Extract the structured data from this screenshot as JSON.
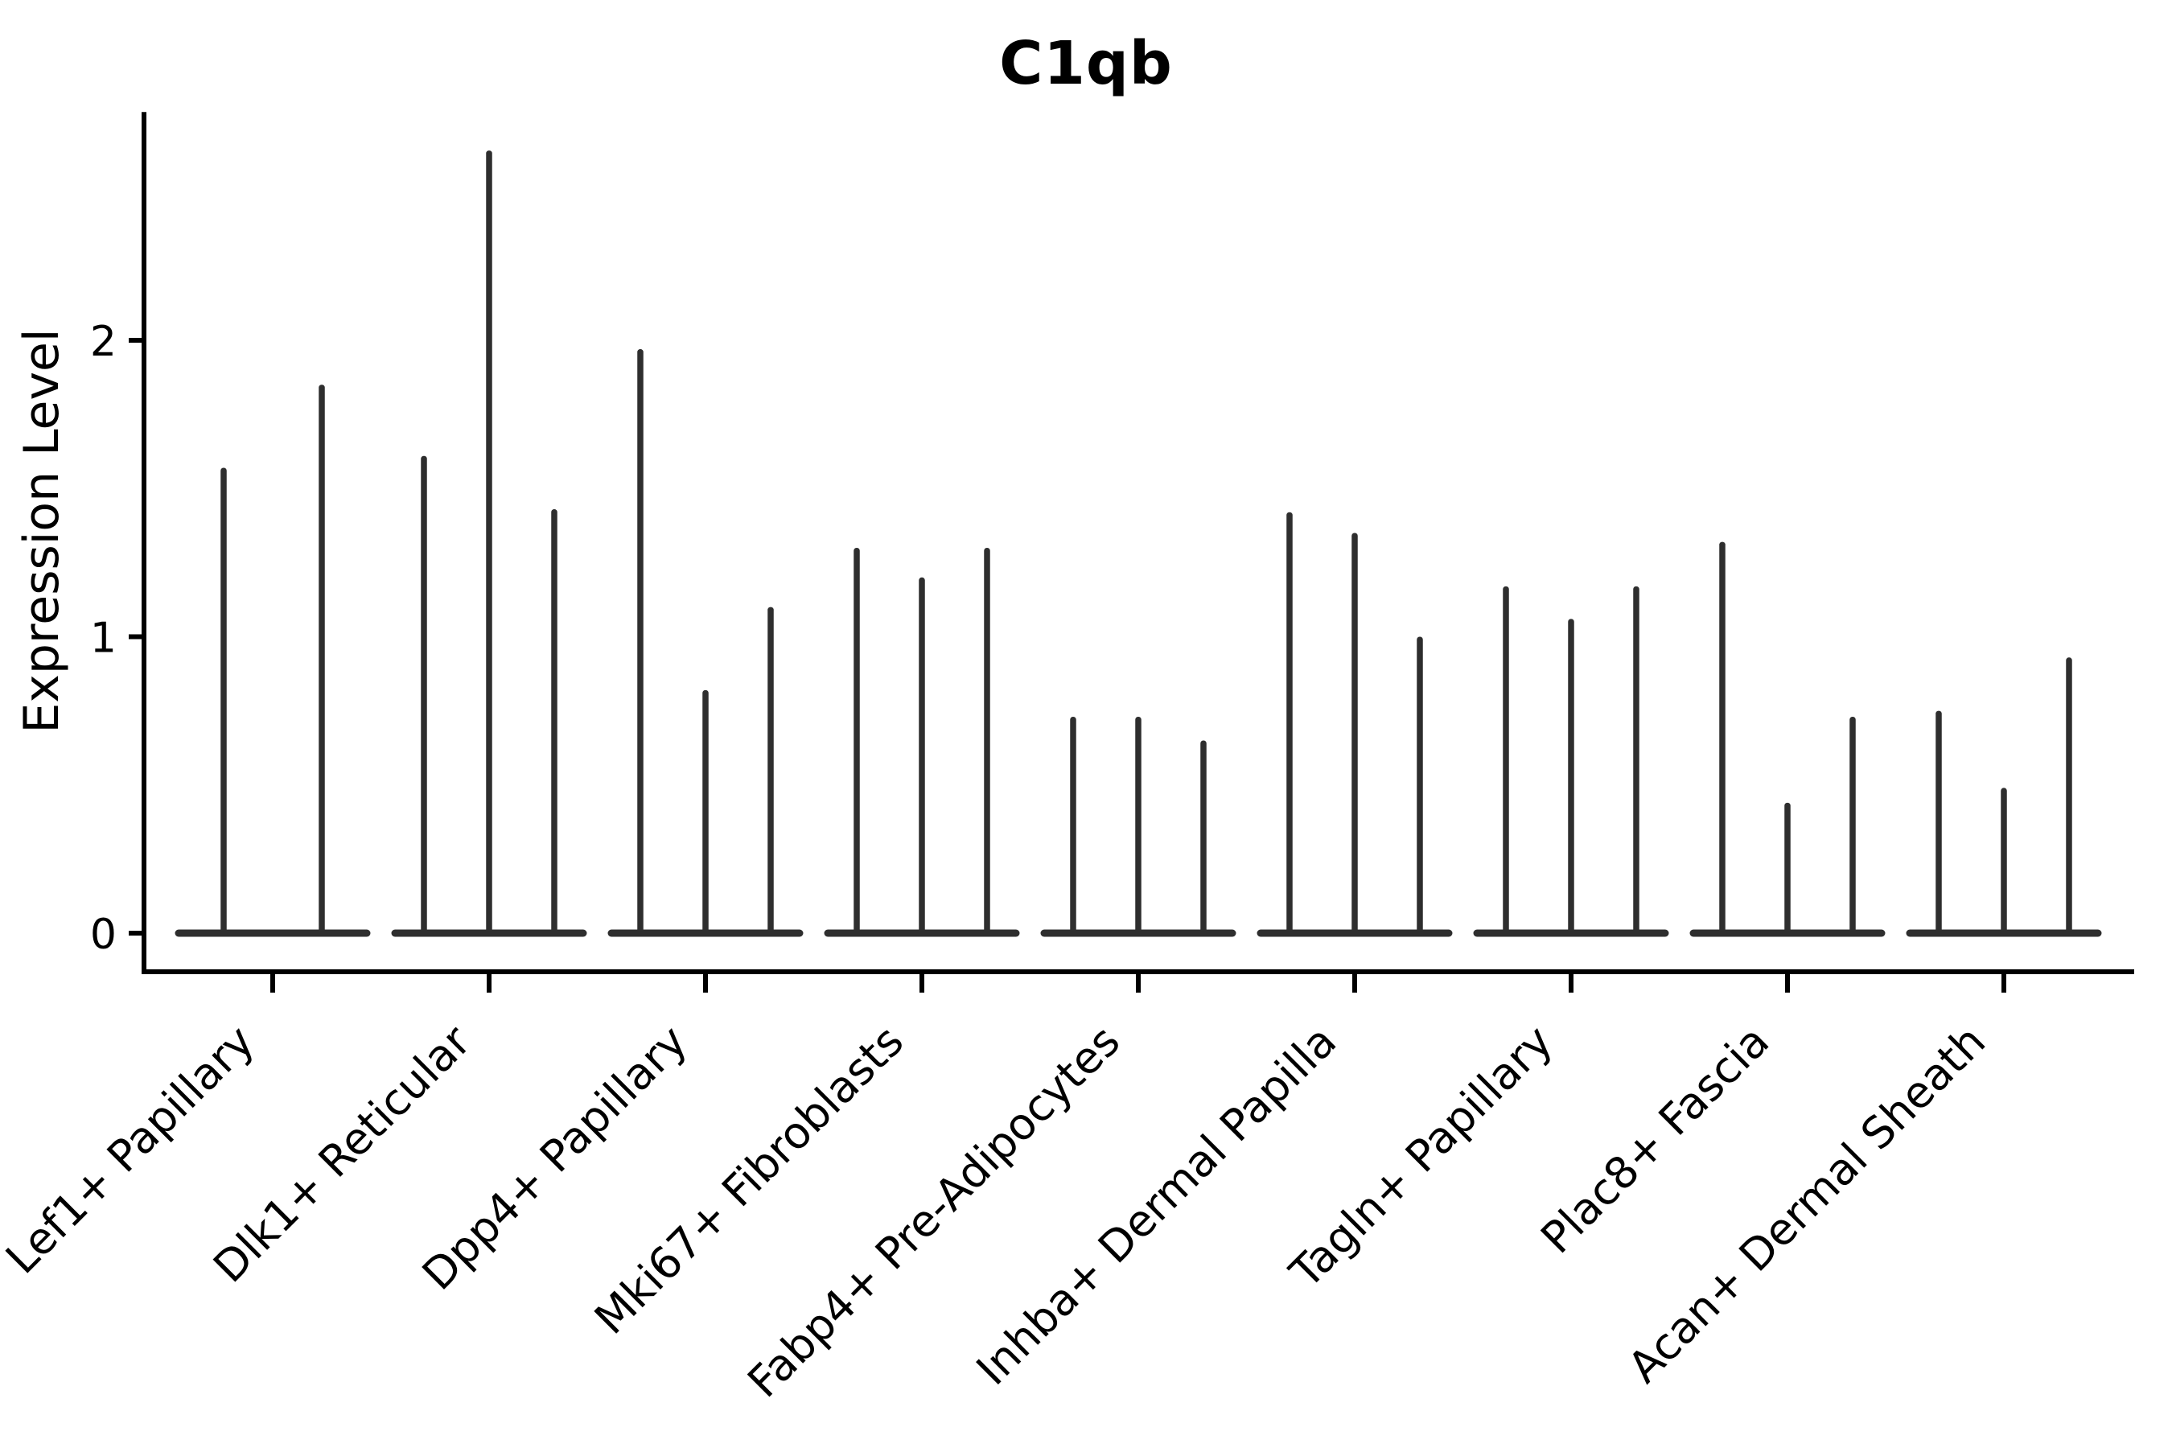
{
  "figure": {
    "title": "C1qb",
    "y_axis_label": "Expression Level",
    "background": "#ffffff"
  },
  "colors": {
    "violin_ink": "#2e2e2e",
    "axis": "#000000",
    "text": "#000000"
  },
  "chart_data": {
    "type": "violin",
    "title": "C1qb",
    "xlabel": "",
    "ylabel": "Expression Level",
    "ylim": [
      -0.13,
      2.77
    ],
    "yticks": [
      0,
      1,
      2
    ],
    "ytick_labels": [
      "0",
      "1",
      "2"
    ],
    "grid": false,
    "legend": "none",
    "layout_hint": "9 cell-type groups on x-axis; each group contains 2-3 very thin spike-shaped violins (bulk of density flat at 0 with a narrow spike to the max expression value); x tick labels rotated 45 degrees, right-aligned",
    "categories": [
      "Lef1+ Papillary",
      "Dlk1+ Reticular",
      "Dpp4+ Papillary",
      "Mki67+ Fibroblasts",
      "Fabp4+ Pre-Adipocytes",
      "Inhba+ Dermal Papilla",
      "Tagln+ Papillary",
      "Plac8+ Fascia",
      "Acan+ Dermal Sheath"
    ],
    "series": [
      {
        "category": "Lef1+ Papillary",
        "violin_peaks": [
          1.57,
          1.85
        ]
      },
      {
        "category": "Dlk1+ Reticular",
        "violin_peaks": [
          1.61,
          2.64,
          1.43
        ]
      },
      {
        "category": "Dpp4+ Papillary",
        "violin_peaks": [
          1.97,
          0.82,
          1.1
        ]
      },
      {
        "category": "Mki67+ Fibroblasts",
        "violin_peaks": [
          1.3,
          1.2,
          1.3
        ]
      },
      {
        "category": "Fabp4+ Pre-Adipocytes",
        "violin_peaks": [
          0.73,
          0.73,
          0.65
        ]
      },
      {
        "category": "Inhba+ Dermal Papilla",
        "violin_peaks": [
          1.42,
          1.35,
          1.0
        ]
      },
      {
        "category": "Tagln+ Papillary",
        "violin_peaks": [
          1.17,
          1.06,
          1.17
        ]
      },
      {
        "category": "Plac8+ Fascia",
        "violin_peaks": [
          1.32,
          0.44,
          0.73
        ]
      },
      {
        "category": "Acan+ Dermal Sheath",
        "violin_peaks": [
          0.75,
          0.49,
          0.93
        ]
      }
    ]
  }
}
